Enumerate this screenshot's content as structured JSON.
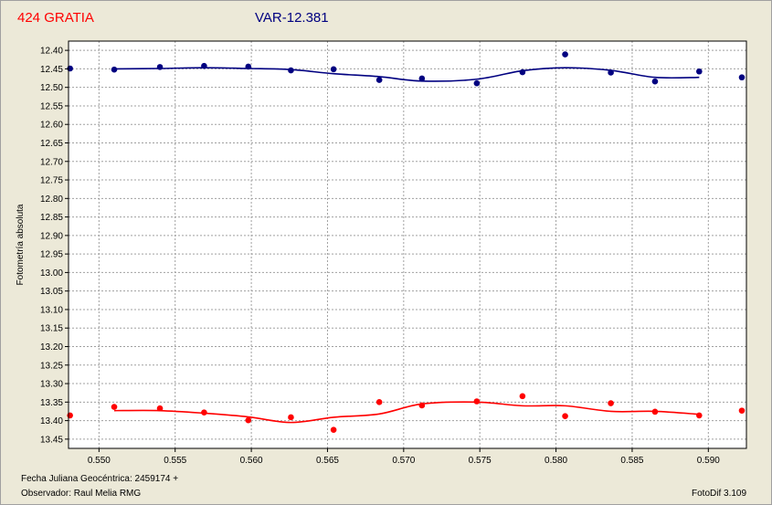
{
  "header": {
    "left_title": "424 GRATIA",
    "right_title": "VAR-12.381"
  },
  "footer": {
    "date_label": "Fecha Juliana Geocéntrica: 2459174 +",
    "observer": "Observador: Raul Melia RMG",
    "software": "FotoDif 3.109"
  },
  "colors": {
    "variable": "#ff0000",
    "comparison": "#000080",
    "grid": "#a0a0a0",
    "plot_bg": "#ffffff"
  },
  "chart_data": {
    "type": "scatter",
    "title": "",
    "xlabel": "",
    "ylabel": "Fotometría absoluta",
    "xlim": [
      0.548,
      0.5925
    ],
    "ylim": [
      13.475,
      12.375
    ],
    "y_inverted": true,
    "grid": true,
    "x_ticks": [
      "0.550",
      "0.555",
      "0.560",
      "0.565",
      "0.570",
      "0.575",
      "0.580",
      "0.585",
      "0.590"
    ],
    "y_ticks": [
      "12.40",
      "12.45",
      "12.50",
      "12.55",
      "12.60",
      "12.65",
      "12.70",
      "12.75",
      "12.80",
      "12.85",
      "12.90",
      "12.95",
      "13.00",
      "13.05",
      "13.10",
      "13.15",
      "13.20",
      "13.25",
      "13.30",
      "13.35",
      "13.40",
      "13.45"
    ],
    "series": [
      {
        "color": "#000080",
        "points": [
          [
            0.5481,
            12.449
          ],
          [
            0.551,
            12.452
          ],
          [
            0.554,
            12.445
          ],
          [
            0.5569,
            12.442
          ],
          [
            0.5598,
            12.444
          ],
          [
            0.5626,
            12.454
          ],
          [
            0.5654,
            12.451
          ],
          [
            0.5684,
            12.48
          ],
          [
            0.5712,
            12.476
          ],
          [
            0.5748,
            12.489
          ],
          [
            0.5778,
            12.459
          ],
          [
            0.5806,
            12.411
          ],
          [
            0.5836,
            12.46
          ],
          [
            0.5865,
            12.484
          ],
          [
            0.5894,
            12.457
          ],
          [
            0.5922,
            12.473
          ]
        ],
        "fit": [
          [
            0.551,
            12.45
          ],
          [
            0.554,
            12.449
          ],
          [
            0.5569,
            12.447
          ],
          [
            0.5598,
            12.449
          ],
          [
            0.5626,
            12.452
          ],
          [
            0.5654,
            12.463
          ],
          [
            0.5684,
            12.471
          ],
          [
            0.5712,
            12.483
          ],
          [
            0.5748,
            12.478
          ],
          [
            0.5778,
            12.455
          ],
          [
            0.5806,
            12.447
          ],
          [
            0.5836,
            12.454
          ],
          [
            0.5865,
            12.473
          ],
          [
            0.5894,
            12.473
          ]
        ]
      },
      {
        "color": "#ff0000",
        "points": [
          [
            0.5481,
            13.386
          ],
          [
            0.551,
            13.363
          ],
          [
            0.554,
            13.367
          ],
          [
            0.5569,
            13.378
          ],
          [
            0.5598,
            13.399
          ],
          [
            0.5626,
            13.391
          ],
          [
            0.5654,
            13.425
          ],
          [
            0.5684,
            13.35
          ],
          [
            0.5712,
            13.359
          ],
          [
            0.5748,
            13.348
          ],
          [
            0.5778,
            13.334
          ],
          [
            0.5806,
            13.388
          ],
          [
            0.5836,
            13.353
          ],
          [
            0.5865,
            13.376
          ],
          [
            0.5894,
            13.386
          ],
          [
            0.5922,
            13.373
          ]
        ],
        "fit": [
          [
            0.551,
            13.373
          ],
          [
            0.554,
            13.373
          ],
          [
            0.5569,
            13.38
          ],
          [
            0.5598,
            13.39
          ],
          [
            0.5626,
            13.405
          ],
          [
            0.5654,
            13.391
          ],
          [
            0.5684,
            13.382
          ],
          [
            0.5712,
            13.355
          ],
          [
            0.5748,
            13.35
          ],
          [
            0.5778,
            13.36
          ],
          [
            0.5806,
            13.36
          ],
          [
            0.5836,
            13.375
          ],
          [
            0.5865,
            13.375
          ],
          [
            0.5894,
            13.383
          ]
        ]
      }
    ]
  }
}
